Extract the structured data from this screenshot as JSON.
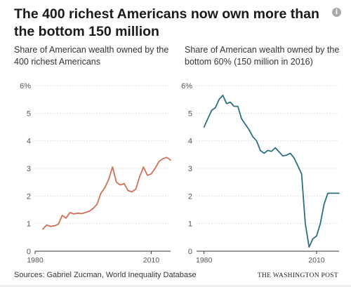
{
  "title": "The 400 richest Americans now own more than the bottom 150 million",
  "info_icon": "info-icon",
  "footer": {
    "source": "Sources: Gabriel Zucman, World Inequality Database",
    "brand": "THE WASHINGTON POST"
  },
  "colors": {
    "left_series": "#d36f57",
    "right_series": "#2e6f82",
    "axis_text": "#555555",
    "grid": "#dddddd"
  },
  "chart_data": [
    {
      "type": "line",
      "subtitle": "Share of American wealth owned by the 400 richest Americans",
      "xlabel": "",
      "ylabel": "",
      "xlim": [
        1980,
        2015
      ],
      "ylim": [
        0,
        6
      ],
      "y_ticks": [
        0,
        1,
        2,
        3,
        4,
        5,
        6
      ],
      "y_tick_labels": [
        "0",
        "1",
        "2",
        "3",
        "4",
        "5",
        "6%"
      ],
      "x_ticks": [
        1980,
        2010
      ],
      "x_tick_labels": [
        "1980",
        "2010"
      ],
      "grid": true,
      "series": [
        {
          "x": [
            1982,
            1983,
            1984,
            1985,
            1986,
            1987,
            1988,
            1989,
            1990,
            1991,
            1992,
            1993,
            1994,
            1995,
            1996,
            1997,
            1998,
            1999,
            2000,
            2001,
            2002,
            2003,
            2004,
            2005,
            2006,
            2007,
            2008,
            2009,
            2010,
            2011,
            2012,
            2013,
            2014,
            2015
          ],
          "y": [
            0.8,
            0.95,
            0.9,
            0.92,
            0.98,
            1.3,
            1.2,
            1.4,
            1.35,
            1.38,
            1.36,
            1.4,
            1.45,
            1.55,
            1.7,
            2.1,
            2.3,
            2.6,
            3.05,
            2.5,
            2.4,
            2.45,
            2.2,
            2.15,
            2.25,
            2.7,
            3.05,
            2.75,
            2.8,
            3.0,
            3.25,
            3.35,
            3.4,
            3.3
          ]
        }
      ]
    },
    {
      "type": "line",
      "subtitle": "Share of American wealth owned by the bottom 60% (150 million in 2016)",
      "xlabel": "",
      "ylabel": "",
      "xlim": [
        1978,
        2016
      ],
      "ylim": [
        0,
        6
      ],
      "y_ticks": [
        0,
        1,
        2,
        3,
        4,
        5,
        6
      ],
      "y_tick_labels": [
        "0",
        "1",
        "2",
        "3",
        "4",
        "5",
        "6%"
      ],
      "x_ticks": [
        1980,
        2010
      ],
      "x_tick_labels": [
        "1980",
        "2010"
      ],
      "grid": true,
      "series": [
        {
          "x": [
            1980,
            1981,
            1982,
            1983,
            1984,
            1985,
            1986,
            1987,
            1988,
            1989,
            1990,
            1991,
            1992,
            1993,
            1994,
            1995,
            1996,
            1997,
            1998,
            1999,
            2000,
            2001,
            2002,
            2003,
            2004,
            2005,
            2006,
            2007,
            2008,
            2009,
            2010,
            2011,
            2012,
            2013,
            2014,
            2015,
            2016
          ],
          "y": [
            4.5,
            4.8,
            5.1,
            5.2,
            5.5,
            5.65,
            5.35,
            5.4,
            5.25,
            5.25,
            4.8,
            4.6,
            4.4,
            4.15,
            4.0,
            3.65,
            3.55,
            3.65,
            3.62,
            3.75,
            3.6,
            3.45,
            3.48,
            3.55,
            3.38,
            3.1,
            2.8,
            1.0,
            0.15,
            0.45,
            0.55,
            1.0,
            1.7,
            2.1,
            2.1,
            2.1,
            2.1
          ]
        }
      ]
    }
  ]
}
